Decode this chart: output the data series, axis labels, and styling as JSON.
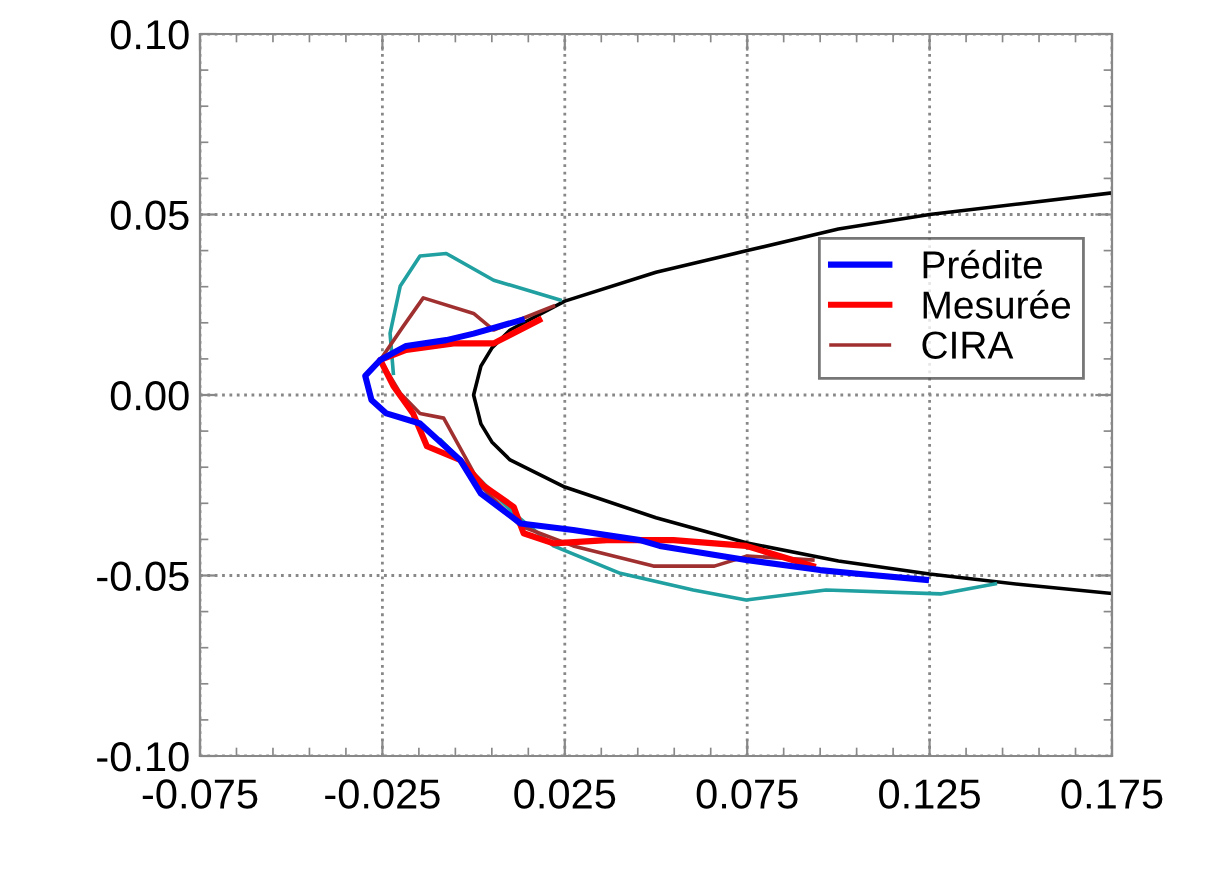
{
  "chart_data": {
    "type": "line",
    "xlim": [
      -0.075,
      0.175
    ],
    "ylim": [
      -0.1,
      0.1
    ],
    "xticks": [
      -0.075,
      -0.025,
      0.025,
      0.075,
      0.125,
      0.175
    ],
    "yticks": [
      {
        "value": -0.1,
        "label": "-0.10"
      },
      {
        "value": -0.05,
        "label": "-0.05"
      },
      {
        "value": 0,
        "label": "0.00"
      },
      {
        "value": 0.05,
        "label": "0.05"
      },
      {
        "value": 0.1,
        "label": "0.10"
      }
    ],
    "grid": true,
    "legend": "right",
    "marker": "none",
    "line_style": "solid",
    "series": [
      {
        "color": "#000000",
        "x": [
          0.175,
          0.15,
          0.125,
          0.1,
          0.075,
          0.05,
          0.025,
          0.01,
          0.005,
          0.002,
          0.0,
          0.002,
          0.005,
          0.01,
          0.025,
          0.05,
          0.075,
          0.1,
          0.125,
          0.15,
          0.175
        ],
        "values": [
          0.056,
          0.053,
          0.05,
          0.046,
          0.04,
          0.034,
          0.026,
          0.018,
          0.013,
          0.008,
          0.0,
          -0.008,
          -0.013,
          -0.018,
          -0.0255,
          -0.034,
          -0.041,
          -0.046,
          -0.0496,
          -0.0525,
          -0.055
        ]
      },
      {
        "color": "#20a0a0",
        "x": [
          0.0237,
          0.0055,
          -0.0075,
          -0.0147,
          -0.0201,
          -0.0229,
          -0.022,
          -0.0185,
          -0.009,
          0.0,
          0.011,
          0.0219,
          0.0402,
          0.0602,
          0.0747,
          0.0966,
          0.128,
          0.143
        ],
        "values": [
          0.0263,
          0.0318,
          0.0392,
          0.0385,
          0.0302,
          0.0171,
          0.006,
          null,
          -0.0125,
          -0.0217,
          -0.0328,
          -0.0418,
          -0.0494,
          -0.054,
          -0.0568,
          -0.054,
          -0.0551,
          -0.0523
        ]
      },
      {
        "name": "CIRA",
        "color": "#a03030",
        "x": [
          0.0219,
          0.0055,
          0.0,
          -0.0138,
          -0.0193,
          -0.0256,
          -0.0201,
          -0.0147,
          -0.0082,
          -0.0019,
          0.002,
          0.0129,
          0.0273,
          0.0493,
          0.066,
          0.075,
          0.093
        ],
        "values": [
          0.0246,
          0.018,
          0.0226,
          0.0269,
          0.019,
          0.0097,
          0.0005,
          -0.0051,
          -0.0064,
          -0.018,
          -0.0252,
          -0.0363,
          -0.0418,
          -0.0474,
          -0.0474,
          -0.0446,
          -0.0457
        ]
      },
      {
        "name": "Mesurée",
        "color": "#ff0000",
        "x": [
          0.018,
          0.0055,
          -0.0055,
          -0.0185,
          -0.0256,
          -0.022,
          -0.0166,
          -0.0128,
          -0.0037,
          0.0028,
          0.011,
          0.0137,
          0.0219,
          0.0365,
          0.0548,
          0.0747,
          0.093
        ],
        "values": [
          0.0208,
          0.0143,
          0.0143,
          0.0125,
          0.0097,
          0.0025,
          -0.0051,
          -0.0142,
          -0.018,
          -0.0252,
          -0.031,
          -0.0383,
          -0.0411,
          -0.0402,
          -0.0402,
          -0.0418,
          -0.0474
        ]
      },
      {
        "name": "Prédite",
        "color": "#0000ff",
        "x": [
          0.0132,
          0.0,
          -0.0075,
          -0.0185,
          -0.0256,
          -0.0297,
          -0.028,
          -0.0239,
          -0.0147,
          -0.0037,
          0.002,
          0.0129,
          0.0273,
          0.0456,
          0.051,
          0.0747,
          0.095,
          0.106,
          0.124
        ],
        "values": [
          0.0208,
          0.017,
          0.0152,
          0.0136,
          0.0097,
          0.0053,
          -0.0014,
          -0.0051,
          -0.0079,
          -0.018,
          -0.0273,
          -0.0356,
          -0.0374,
          -0.0402,
          -0.0418,
          -0.0457,
          -0.0485,
          -0.0496,
          -0.0512
        ]
      }
    ]
  }
}
